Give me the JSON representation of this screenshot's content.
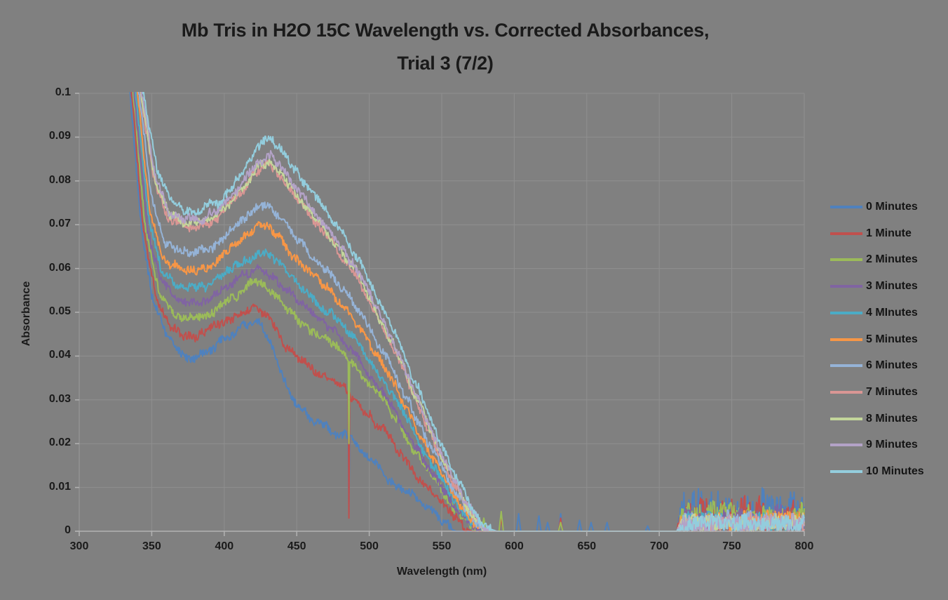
{
  "header": {
    "title_lines": [
      "Mb Tris in H2O 15C Wavelength vs. Corrected Absorbances,",
      "Trial 3 (7/2)"
    ]
  },
  "colors": {
    "background": "#808080",
    "gridline": "#8f8f8f",
    "axis_line": "#b3b3b3",
    "text": "#1a1a1a"
  },
  "chart_data": {
    "type": "line",
    "title": "Mb Tris in H2O 15C Wavelength vs. Corrected Absorbances, Trial 3 (7/2)",
    "xlabel": "Wavelength (nm)",
    "ylabel": "Absorbance",
    "xlim": [
      300,
      800
    ],
    "ylim": [
      0,
      0.1
    ],
    "x_ticks": [
      300,
      350,
      400,
      450,
      500,
      550,
      600,
      650,
      700,
      750,
      800
    ],
    "y_ticks": [
      "0",
      "0.01",
      "0.02",
      "0.03",
      "0.04",
      "0.05",
      "0.06",
      "0.07",
      "0.08",
      "0.09",
      "0.1"
    ],
    "grid": true,
    "legend_position": "right",
    "noise": {
      "main_amp": 0.0009,
      "slow_amp": 0.00075,
      "note": "high-frequency measurement noise of about +/-0.0015 absorbance on every trace"
    },
    "series": [
      {
        "name": "0 Minutes",
        "color": "#4F81BD",
        "tail_mean": 0.0045,
        "tail_amp": 0.004,
        "anchors": [
          [
            330.5,
            0.15
          ],
          [
            335,
            0.1
          ],
          [
            342,
            0.072
          ],
          [
            350,
            0.054
          ],
          [
            360,
            0.0445
          ],
          [
            370,
            0.0405
          ],
          [
            378,
            0.0395
          ],
          [
            390,
            0.0415
          ],
          [
            400,
            0.044
          ],
          [
            410,
            0.0462
          ],
          [
            418,
            0.0476
          ],
          [
            424,
            0.0478
          ],
          [
            432,
            0.043
          ],
          [
            440,
            0.035
          ],
          [
            450,
            0.029
          ],
          [
            462,
            0.025
          ],
          [
            475,
            0.023
          ],
          [
            487,
            0.0213
          ],
          [
            500,
            0.0165
          ],
          [
            515,
            0.0115
          ],
          [
            530,
            0.008
          ],
          [
            545,
            0.004
          ],
          [
            556,
            0.0005
          ],
          [
            560,
            0
          ],
          [
            712,
            0
          ]
        ],
        "spike": [
          486,
          0.004
        ],
        "bumps": [
          [
            591,
            0.004
          ],
          [
            603,
            0.004
          ],
          [
            617,
            0.0035
          ],
          [
            623,
            0.002
          ],
          [
            632,
            0.004
          ],
          [
            645,
            0.0025
          ],
          [
            653,
            0.002
          ],
          [
            664,
            0.002
          ],
          [
            692,
            0.0012
          ]
        ]
      },
      {
        "name": "1 Minute",
        "color": "#C0504D",
        "tail_mean": 0.0038,
        "tail_amp": 0.0035,
        "anchors": [
          [
            331.5,
            0.15
          ],
          [
            336,
            0.1
          ],
          [
            344,
            0.07
          ],
          [
            352,
            0.0545
          ],
          [
            362,
            0.047
          ],
          [
            372,
            0.0448
          ],
          [
            380,
            0.0445
          ],
          [
            395,
            0.047
          ],
          [
            405,
            0.0485
          ],
          [
            415,
            0.0505
          ],
          [
            421,
            0.0512
          ],
          [
            430,
            0.049
          ],
          [
            440,
            0.043
          ],
          [
            450,
            0.0395
          ],
          [
            465,
            0.0365
          ],
          [
            480,
            0.034
          ],
          [
            495,
            0.028
          ],
          [
            510,
            0.023
          ],
          [
            525,
            0.016
          ],
          [
            540,
            0.01
          ],
          [
            555,
            0.0045
          ],
          [
            567,
            0.0005
          ],
          [
            571,
            0
          ],
          [
            712,
            0
          ]
        ],
        "spike": [
          486,
          0.003
        ],
        "bumps": [
          [
            591,
            0.003
          ],
          [
            632,
            0.003
          ]
        ]
      },
      {
        "name": "2 Minutes",
        "color": "#9BBB59",
        "tail_mean": 0.0032,
        "tail_amp": 0.003,
        "anchors": [
          [
            332.5,
            0.15
          ],
          [
            337,
            0.1
          ],
          [
            346,
            0.068
          ],
          [
            355,
            0.0545
          ],
          [
            365,
            0.05
          ],
          [
            374,
            0.0483
          ],
          [
            385,
            0.049
          ],
          [
            400,
            0.052
          ],
          [
            410,
            0.0545
          ],
          [
            418,
            0.0565
          ],
          [
            423,
            0.0572
          ],
          [
            432,
            0.055
          ],
          [
            442,
            0.051
          ],
          [
            452,
            0.0478
          ],
          [
            465,
            0.0448
          ],
          [
            480,
            0.0415
          ],
          [
            495,
            0.0355
          ],
          [
            510,
            0.03
          ],
          [
            525,
            0.0215
          ],
          [
            540,
            0.014
          ],
          [
            555,
            0.007
          ],
          [
            568,
            0.002
          ],
          [
            578,
            0
          ],
          [
            712,
            0
          ]
        ],
        "spike": [
          486,
          0.02
        ],
        "bumps": [
          [
            579,
            0.003
          ],
          [
            591,
            0.0045
          ],
          [
            632,
            0.002
          ]
        ]
      },
      {
        "name": "3 Minutes",
        "color": "#8064A2",
        "tail_mean": 0.0025,
        "tail_amp": 0.0025,
        "anchors": [
          [
            333.5,
            0.15
          ],
          [
            338,
            0.1
          ],
          [
            347,
            0.069
          ],
          [
            356,
            0.057
          ],
          [
            366,
            0.0533
          ],
          [
            374,
            0.052
          ],
          [
            388,
            0.053
          ],
          [
            402,
            0.056
          ],
          [
            412,
            0.0583
          ],
          [
            420,
            0.0598
          ],
          [
            426,
            0.06
          ],
          [
            436,
            0.0575
          ],
          [
            446,
            0.054
          ],
          [
            458,
            0.0505
          ],
          [
            472,
            0.0467
          ],
          [
            486,
            0.0425
          ],
          [
            500,
            0.036
          ],
          [
            515,
            0.029
          ],
          [
            530,
            0.0205
          ],
          [
            545,
            0.0125
          ],
          [
            560,
            0.0055
          ],
          [
            572,
            0.0008
          ],
          [
            580,
            0
          ],
          [
            712,
            0
          ]
        ]
      },
      {
        "name": "4 MInutes",
        "color": "#4BACC6",
        "tail_mean": 0.0022,
        "tail_amp": 0.002,
        "anchors": [
          [
            334.5,
            0.15
          ],
          [
            339,
            0.1
          ],
          [
            348,
            0.071
          ],
          [
            357,
            0.059
          ],
          [
            367,
            0.0565
          ],
          [
            375,
            0.0553
          ],
          [
            390,
            0.0565
          ],
          [
            404,
            0.0595
          ],
          [
            414,
            0.0618
          ],
          [
            421,
            0.0632
          ],
          [
            428,
            0.0635
          ],
          [
            438,
            0.061
          ],
          [
            448,
            0.0572
          ],
          [
            460,
            0.0535
          ],
          [
            474,
            0.0495
          ],
          [
            488,
            0.045
          ],
          [
            502,
            0.0382
          ],
          [
            517,
            0.0308
          ],
          [
            532,
            0.0218
          ],
          [
            547,
            0.0132
          ],
          [
            562,
            0.0058
          ],
          [
            574,
            0.0008
          ],
          [
            582,
            0
          ],
          [
            712,
            0
          ]
        ]
      },
      {
        "name": "5 Minutes",
        "color": "#F79646",
        "tail_mean": 0.0022,
        "tail_amp": 0.002,
        "anchors": [
          [
            335.5,
            0.15
          ],
          [
            340,
            0.1
          ],
          [
            349,
            0.073
          ],
          [
            358,
            0.062
          ],
          [
            368,
            0.06
          ],
          [
            376,
            0.0592
          ],
          [
            391,
            0.0607
          ],
          [
            405,
            0.0645
          ],
          [
            415,
            0.0672
          ],
          [
            422,
            0.069
          ],
          [
            429,
            0.0695
          ],
          [
            439,
            0.0665
          ],
          [
            449,
            0.0625
          ],
          [
            461,
            0.0585
          ],
          [
            475,
            0.054
          ],
          [
            489,
            0.0487
          ],
          [
            503,
            0.0412
          ],
          [
            518,
            0.033
          ],
          [
            533,
            0.0232
          ],
          [
            548,
            0.014
          ],
          [
            563,
            0.006
          ],
          [
            575,
            0.0008
          ],
          [
            583,
            0
          ],
          [
            712,
            0
          ]
        ]
      },
      {
        "name": "6 Minutes",
        "color": "#95B3D7",
        "tail_mean": 0.002,
        "tail_amp": 0.002,
        "anchors": [
          [
            336.5,
            0.15
          ],
          [
            341,
            0.1
          ],
          [
            350,
            0.076
          ],
          [
            359,
            0.066
          ],
          [
            369,
            0.064
          ],
          [
            377,
            0.0632
          ],
          [
            392,
            0.065
          ],
          [
            406,
            0.0692
          ],
          [
            416,
            0.0722
          ],
          [
            423,
            0.074
          ],
          [
            430,
            0.0745
          ],
          [
            440,
            0.0712
          ],
          [
            450,
            0.067
          ],
          [
            462,
            0.0625
          ],
          [
            476,
            0.0578
          ],
          [
            490,
            0.052
          ],
          [
            504,
            0.044
          ],
          [
            519,
            0.0352
          ],
          [
            534,
            0.0248
          ],
          [
            549,
            0.015
          ],
          [
            564,
            0.0063
          ],
          [
            576,
            0.0008
          ],
          [
            584,
            0
          ],
          [
            712,
            0
          ]
        ]
      },
      {
        "name": "7 Minutes",
        "color": "#D99694",
        "tail_mean": 0.0018,
        "tail_amp": 0.0018,
        "anchors": [
          [
            337.5,
            0.15
          ],
          [
            342,
            0.1
          ],
          [
            352,
            0.079
          ],
          [
            361,
            0.0718
          ],
          [
            371,
            0.07
          ],
          [
            379,
            0.0693
          ],
          [
            394,
            0.0713
          ],
          [
            408,
            0.076
          ],
          [
            418,
            0.08
          ],
          [
            424,
            0.0828
          ],
          [
            431,
            0.0836
          ],
          [
            441,
            0.0798
          ],
          [
            451,
            0.0752
          ],
          [
            463,
            0.0703
          ],
          [
            477,
            0.0648
          ],
          [
            491,
            0.0583
          ],
          [
            505,
            0.0493
          ],
          [
            520,
            0.0393
          ],
          [
            535,
            0.0278
          ],
          [
            550,
            0.0166
          ],
          [
            565,
            0.0069
          ],
          [
            577,
            0.0009
          ],
          [
            585,
            0
          ],
          [
            712,
            0
          ]
        ]
      },
      {
        "name": "8 Minutes",
        "color": "#C3D69B",
        "tail_mean": 0.0018,
        "tail_amp": 0.0018,
        "anchors": [
          [
            338,
            0.15
          ],
          [
            342.5,
            0.1
          ],
          [
            352.5,
            0.0795
          ],
          [
            361.5,
            0.0723
          ],
          [
            371.5,
            0.0706
          ],
          [
            379.5,
            0.07
          ],
          [
            394.5,
            0.072
          ],
          [
            408.5,
            0.0768
          ],
          [
            418.5,
            0.081
          ],
          [
            424.5,
            0.0838
          ],
          [
            431.5,
            0.0846
          ],
          [
            441.5,
            0.0808
          ],
          [
            451.5,
            0.0762
          ],
          [
            463.5,
            0.0712
          ],
          [
            477.5,
            0.0656
          ],
          [
            491.5,
            0.059
          ],
          [
            505.5,
            0.0499
          ],
          [
            520.5,
            0.0398
          ],
          [
            535.5,
            0.0282
          ],
          [
            550.5,
            0.0169
          ],
          [
            565.5,
            0.007
          ],
          [
            577.5,
            0.0009
          ],
          [
            585.5,
            0
          ],
          [
            712,
            0
          ]
        ]
      },
      {
        "name": "9 Minutes",
        "color": "#B3A2C7",
        "tail_mean": 0.0018,
        "tail_amp": 0.0018,
        "anchors": [
          [
            338.5,
            0.15
          ],
          [
            343,
            0.1
          ],
          [
            353,
            0.08
          ],
          [
            362,
            0.0728
          ],
          [
            372,
            0.0712
          ],
          [
            380,
            0.0708
          ],
          [
            395,
            0.0728
          ],
          [
            409,
            0.0775
          ],
          [
            419,
            0.082
          ],
          [
            425,
            0.0848
          ],
          [
            432,
            0.0855
          ],
          [
            442,
            0.0818
          ],
          [
            452,
            0.077
          ],
          [
            464,
            0.072
          ],
          [
            478,
            0.0663
          ],
          [
            492,
            0.0597
          ],
          [
            506,
            0.0505
          ],
          [
            521,
            0.0403
          ],
          [
            536,
            0.0285
          ],
          [
            551,
            0.0172
          ],
          [
            566,
            0.0072
          ],
          [
            578,
            0.0009
          ],
          [
            586,
            0
          ],
          [
            712,
            0
          ]
        ]
      },
      {
        "name": "10 Minutes",
        "color": "#93CDDD",
        "tail_mean": 0.0018,
        "tail_amp": 0.0018,
        "anchors": [
          [
            339.5,
            0.15
          ],
          [
            344,
            0.1
          ],
          [
            354,
            0.082
          ],
          [
            363,
            0.0752
          ],
          [
            373,
            0.0736
          ],
          [
            381,
            0.0732
          ],
          [
            396,
            0.0752
          ],
          [
            410,
            0.0805
          ],
          [
            420,
            0.0855
          ],
          [
            426,
            0.0888
          ],
          [
            433,
            0.0894
          ],
          [
            443,
            0.0855
          ],
          [
            453,
            0.0805
          ],
          [
            465,
            0.0752
          ],
          [
            479,
            0.069
          ],
          [
            493,
            0.062
          ],
          [
            507,
            0.0525
          ],
          [
            522,
            0.042
          ],
          [
            537,
            0.0298
          ],
          [
            552,
            0.018
          ],
          [
            567,
            0.0075
          ],
          [
            579,
            0.001
          ],
          [
            588,
            0
          ],
          [
            712,
            0
          ]
        ]
      }
    ]
  }
}
